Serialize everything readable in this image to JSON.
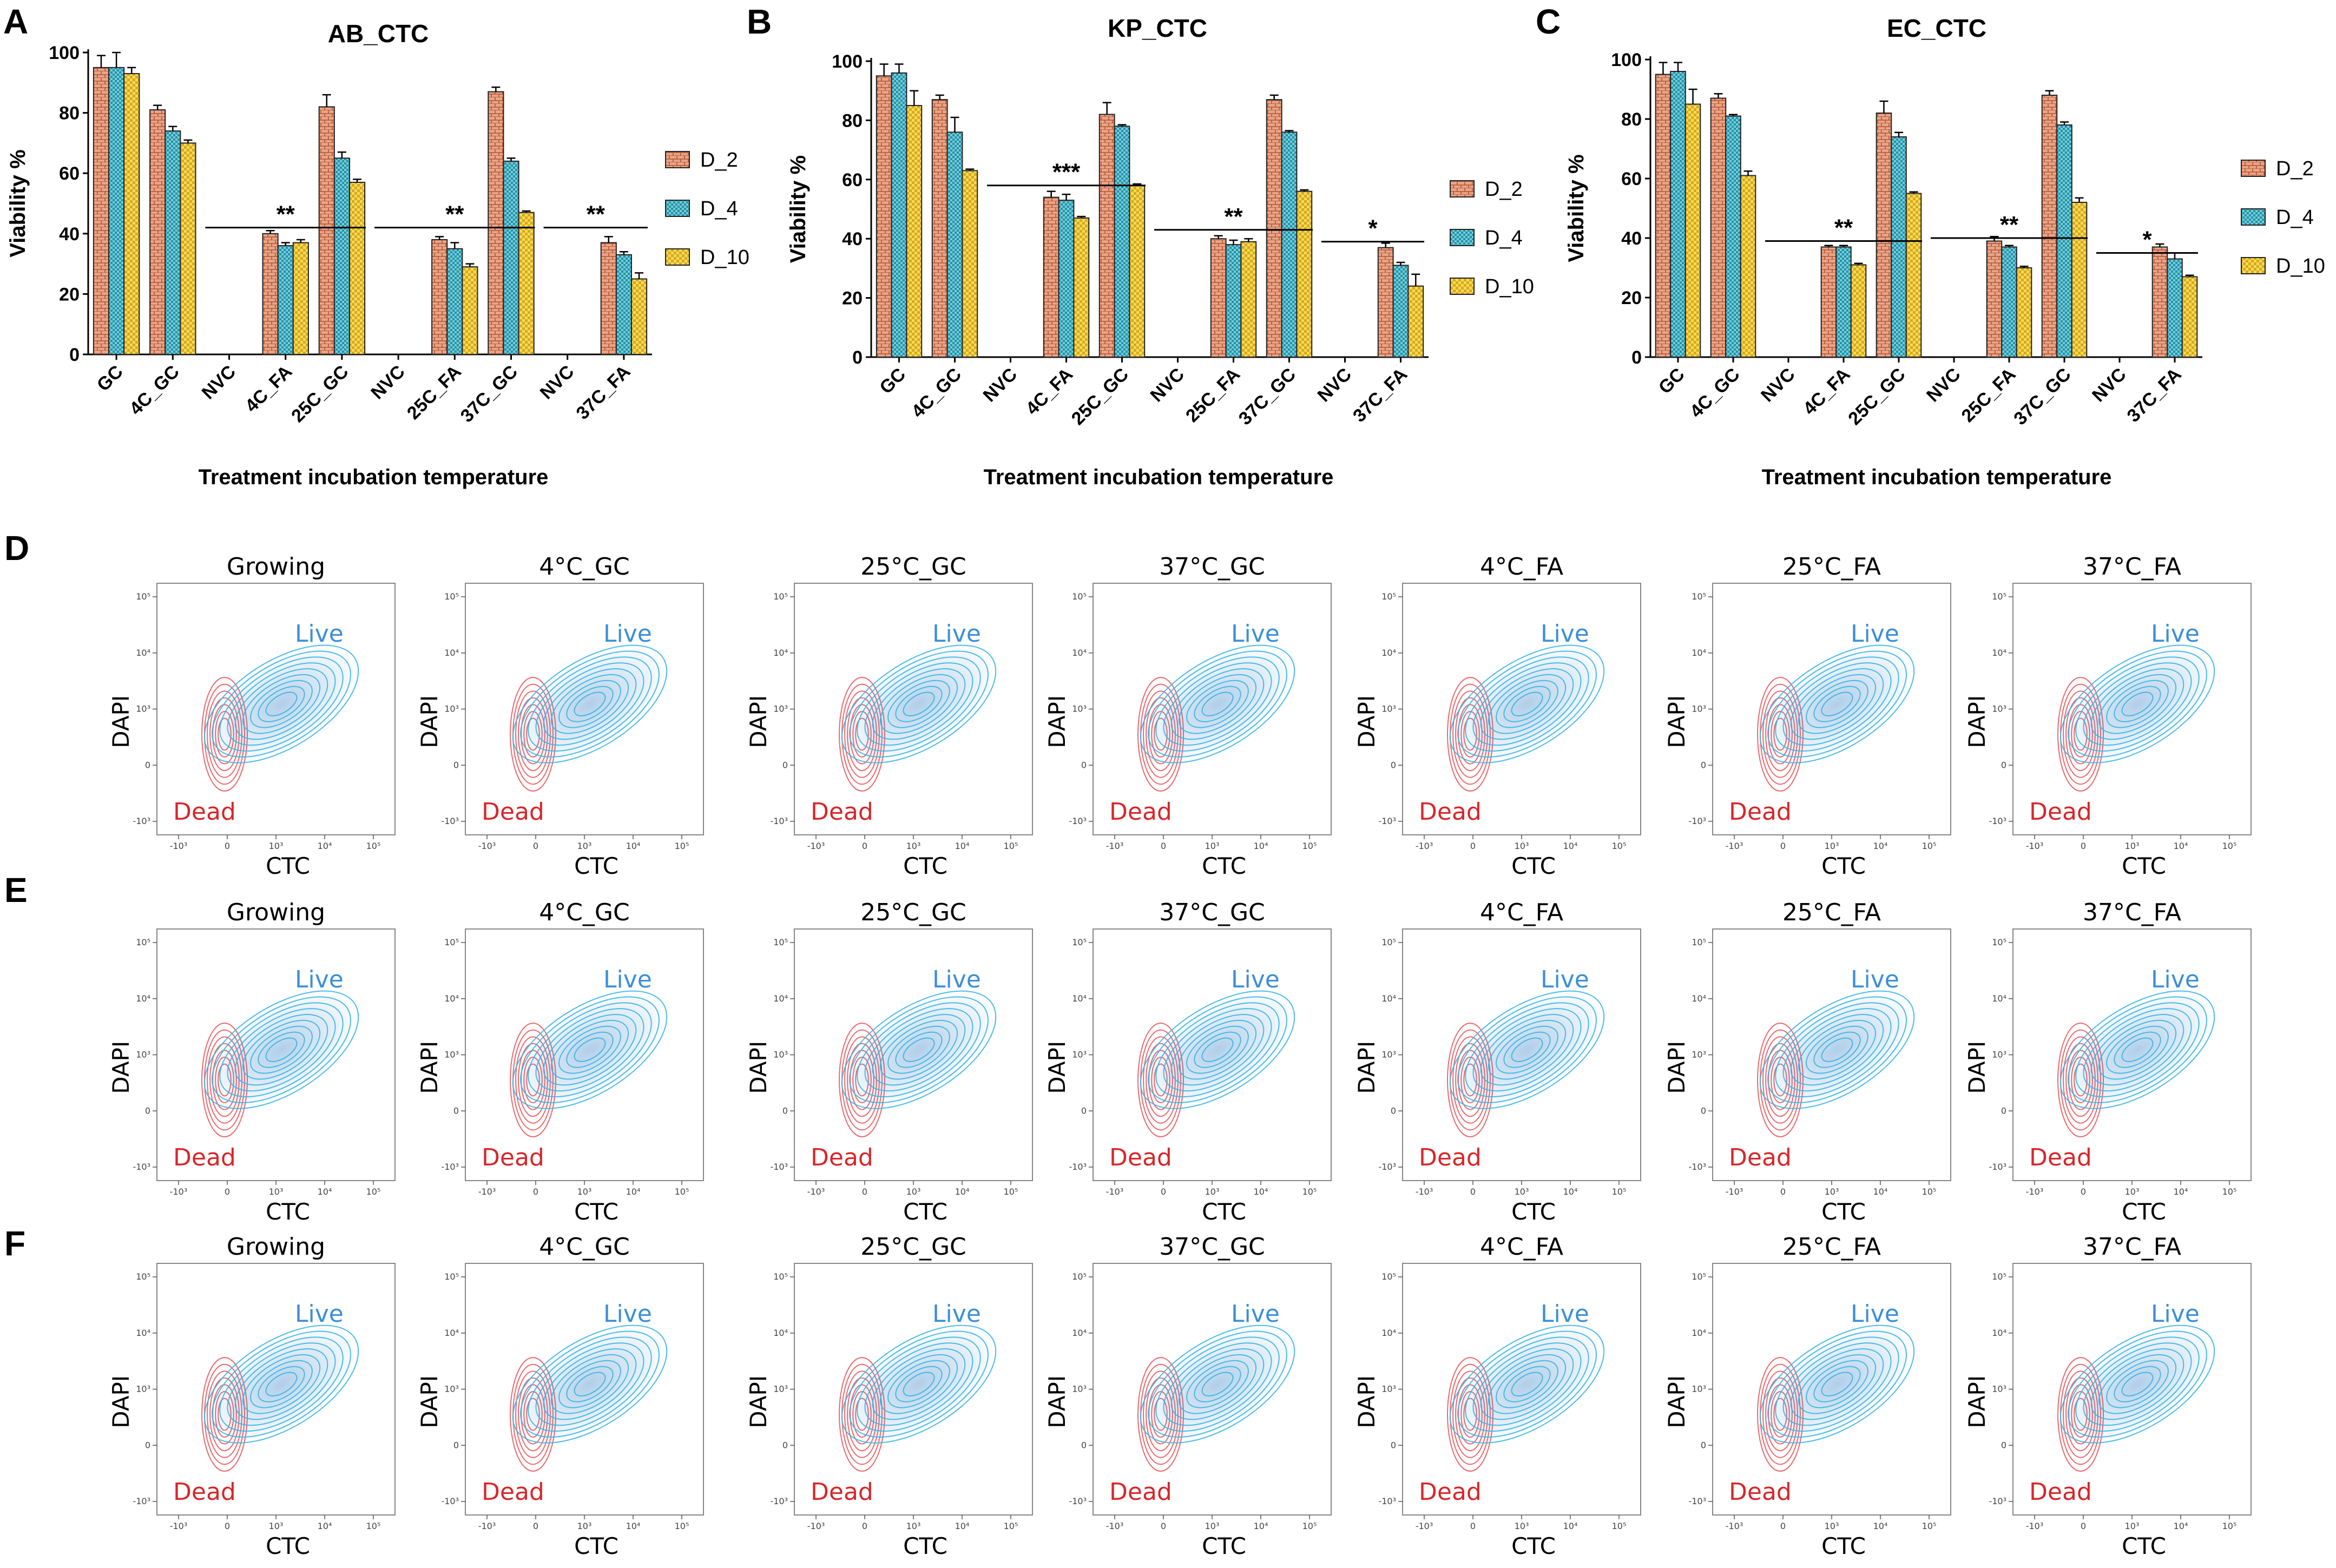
{
  "panel_letters": {
    "A": "A",
    "B": "B",
    "C": "C",
    "D": "D",
    "E": "E",
    "F": "F"
  },
  "colors": {
    "d2": "#e49a7c",
    "d4": "#5dc8d8",
    "d10": "#f2d04a",
    "live": "#39b5e6",
    "dead": "#ea5a5e"
  },
  "chart_data": [
    {
      "type": "bar",
      "title": "AB_CTC",
      "xlabel": "Treatment incubation temperature",
      "ylabel": "Viability %",
      "ylim": [
        0,
        100
      ],
      "yticks": [
        0,
        20,
        40,
        60,
        80,
        100
      ],
      "legend": [
        "D_2",
        "D_4",
        "D_10"
      ],
      "categories": [
        "GC",
        "4C_GC",
        "NVC",
        "4C_FA",
        "25C_GC",
        "NVC",
        "25C_FA",
        "37C_GC",
        "NVC",
        "37C_FA"
      ],
      "series": [
        {
          "name": "D_2",
          "values": [
            95,
            81,
            0,
            40,
            82,
            0,
            38,
            87,
            0,
            37
          ],
          "errors": [
            4,
            1.5,
            0,
            1,
            4,
            0,
            1,
            1.5,
            0,
            2
          ]
        },
        {
          "name": "D_4",
          "values": [
            95,
            74,
            0,
            36,
            65,
            0,
            35,
            64,
            0,
            33
          ],
          "errors": [
            5,
            1.5,
            0,
            1,
            2,
            0,
            2,
            1,
            0,
            1
          ]
        },
        {
          "name": "D_10",
          "values": [
            93,
            70,
            0,
            37,
            57,
            0,
            29,
            47,
            0,
            25
          ],
          "errors": [
            2,
            1,
            0,
            1,
            1,
            0,
            1,
            0.5,
            0,
            2
          ]
        }
      ],
      "significance": [
        {
          "from": 2,
          "to": 4,
          "label": "**",
          "y": 42
        },
        {
          "from": 5,
          "to": 7,
          "label": "**",
          "y": 42
        },
        {
          "from": 8,
          "to": 9,
          "label": "**",
          "y": 42
        }
      ]
    },
    {
      "type": "bar",
      "title": "KP_CTC",
      "xlabel": "Treatment incubation temperature",
      "ylabel": "Viability %",
      "ylim": [
        0,
        100
      ],
      "yticks": [
        0,
        20,
        40,
        60,
        80,
        100
      ],
      "legend": [
        "D_2",
        "D_4",
        "D_10"
      ],
      "categories": [
        "GC",
        "4C_GC",
        "NVC",
        "4C_FA",
        "25C_GC",
        "NVC",
        "25C_FA",
        "37C_GC",
        "NVC",
        "37C_FA"
      ],
      "series": [
        {
          "name": "D_2",
          "values": [
            95,
            87,
            0,
            54,
            82,
            0,
            40,
            87,
            0,
            37
          ],
          "errors": [
            4,
            1.5,
            0,
            2,
            4,
            0,
            1,
            1.5,
            0,
            1.5
          ]
        },
        {
          "name": "D_4",
          "values": [
            96,
            76,
            0,
            53,
            78,
            0,
            38,
            76,
            0,
            31
          ],
          "errors": [
            3,
            5,
            0,
            2,
            0.5,
            0,
            1.5,
            0.5,
            0,
            1
          ]
        },
        {
          "name": "D_10",
          "values": [
            85,
            63,
            0,
            47,
            58,
            0,
            39,
            56,
            0,
            24
          ],
          "errors": [
            5,
            0.5,
            0,
            0.5,
            0.5,
            0,
            1,
            0.5,
            0,
            4
          ]
        }
      ],
      "significance": [
        {
          "from": 2,
          "to": 4,
          "label": "***",
          "y": 58
        },
        {
          "from": 5,
          "to": 7,
          "label": "**",
          "y": 43
        },
        {
          "from": 8,
          "to": 9,
          "label": "*",
          "y": 39
        }
      ]
    },
    {
      "type": "bar",
      "title": "EC_CTC",
      "xlabel": "Treatment incubation temperature",
      "ylabel": "Viability %",
      "ylim": [
        0,
        100
      ],
      "yticks": [
        0,
        20,
        40,
        60,
        80,
        100
      ],
      "legend": [
        "D_2",
        "D_4",
        "D_10"
      ],
      "categories": [
        "GC",
        "4C_GC",
        "NVC",
        "4C_FA",
        "25C_GC",
        "NVC",
        "25C_FA",
        "37C_GC",
        "NVC",
        "37C_FA"
      ],
      "series": [
        {
          "name": "D_2",
          "values": [
            95,
            87,
            0,
            37,
            82,
            0,
            39,
            88,
            0,
            37
          ],
          "errors": [
            4,
            1.5,
            0,
            0.5,
            4,
            0,
            1.5,
            1.5,
            0,
            1
          ]
        },
        {
          "name": "D_4",
          "values": [
            96,
            81,
            0,
            37,
            74,
            0,
            37,
            78,
            0,
            33
          ],
          "errors": [
            3,
            0.5,
            0,
            0.5,
            1.5,
            0,
            0.5,
            1,
            0,
            2
          ]
        },
        {
          "name": "D_10",
          "values": [
            85,
            61,
            0,
            31,
            55,
            0,
            30,
            52,
            0,
            27
          ],
          "errors": [
            5,
            1.5,
            0,
            0.5,
            0.5,
            0,
            0.5,
            1.5,
            0,
            0.5
          ]
        }
      ],
      "significance": [
        {
          "from": 2,
          "to": 4,
          "label": "**",
          "y": 39
        },
        {
          "from": 5,
          "to": 7,
          "label": "**",
          "y": 40
        },
        {
          "from": 8,
          "to": 9,
          "label": "*",
          "y": 35
        }
      ]
    },
    {
      "type": "contour",
      "xlabel": "CTC",
      "ylabel": "DAPI",
      "live_label": "Live",
      "dead_label": "Dead",
      "x_ticks": [
        "-10³",
        "0",
        "10³",
        "10⁴",
        "10⁵"
      ],
      "y_ticks": [
        "10⁵",
        "10⁴",
        "10³",
        "0",
        "-10³"
      ],
      "rows": [
        {
          "row": "D",
          "panels": [
            "Growing",
            "4°C_GC",
            "25°C_GC",
            "37°C_GC",
            "4°C_FA",
            "25°C_FA",
            "37°C_FA"
          ]
        },
        {
          "row": "E",
          "panels": [
            "Growing",
            "4°C_GC",
            "25°C_GC",
            "37°C_GC",
            "4°C_FA",
            "25°C_FA",
            "37°C_FA"
          ]
        },
        {
          "row": "F",
          "panels": [
            "Growing",
            "4°C_GC",
            "25°C_GC",
            "37°C_GC",
            "4°C_FA",
            "25°C_FA",
            "37°C_FA"
          ]
        }
      ]
    }
  ]
}
